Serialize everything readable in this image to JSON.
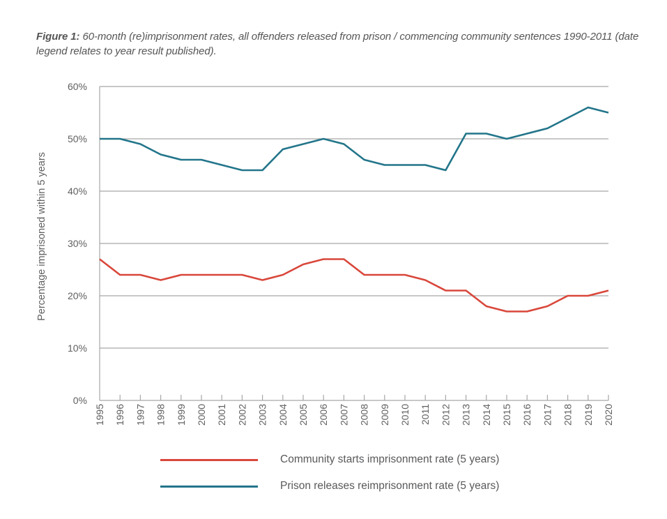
{
  "caption": {
    "prefix": "Figure 1:",
    "text": " 60-month (re)imprisonment rates, all offenders released from prison / commencing community sentences 1990-2011 (date legend relates to year result published)."
  },
  "chart_data": {
    "type": "line",
    "title": "Figure 1: 60-month (re)imprisonment rates, all offenders released from prison / commencing community sentences 1990-2011 (date legend relates to year result published).",
    "xlabel": "",
    "ylabel": "Percentage imprisoned within 5 years",
    "x": [
      "1995",
      "1996",
      "1997",
      "1998",
      "1999",
      "2000",
      "2001",
      "2002",
      "2003",
      "2004",
      "2005",
      "2006",
      "2007",
      "2008",
      "2009",
      "2010",
      "2011",
      "2012",
      "2013",
      "2014",
      "2015",
      "2016",
      "2017",
      "2018",
      "2019",
      "2020"
    ],
    "ylim": [
      0,
      60
    ],
    "yticks": [
      0,
      10,
      20,
      30,
      40,
      50,
      60
    ],
    "ytick_labels": [
      "0%",
      "10%",
      "20%",
      "30%",
      "40%",
      "50%",
      "60%"
    ],
    "grid": true,
    "legend_position": "bottom",
    "series": [
      {
        "name": "Community starts imprisonment rate (5 years)",
        "color": "#d9473b",
        "values": [
          27,
          24,
          24,
          23,
          24,
          24,
          24,
          24,
          23,
          24,
          26,
          27,
          27,
          24,
          24,
          24,
          23,
          21,
          21,
          18,
          17,
          17,
          18,
          20,
          20,
          21
        ]
      },
      {
        "name": "Prison releases reimprisonment rate (5 years)",
        "color": "#22758a",
        "values": [
          50,
          50,
          49,
          47,
          46,
          46,
          45,
          44,
          44,
          48,
          49,
          50,
          49,
          46,
          45,
          45,
          45,
          44,
          51,
          51,
          50,
          51,
          52,
          54,
          56,
          55
        ]
      }
    ]
  }
}
